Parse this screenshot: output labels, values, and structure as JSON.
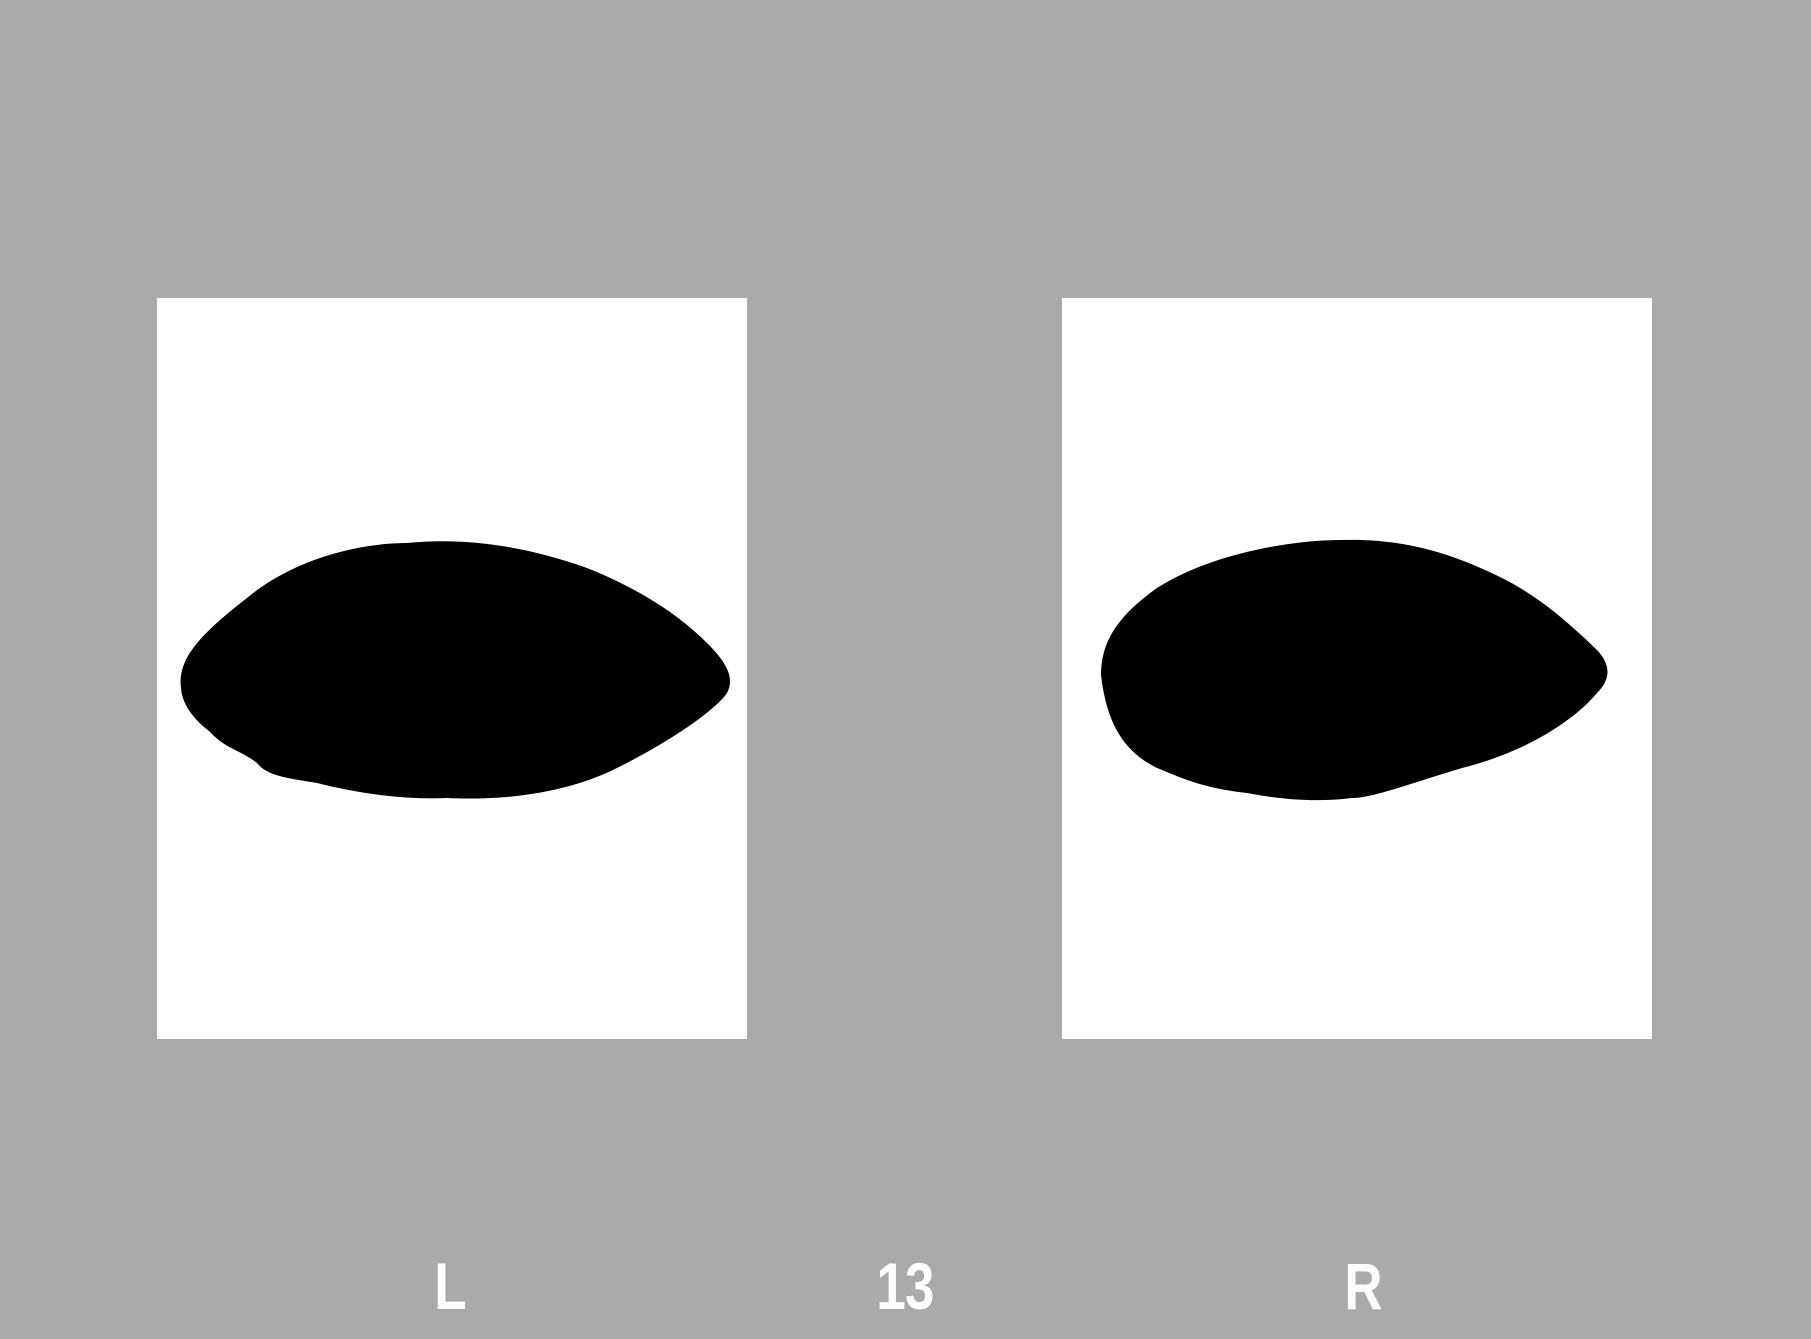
{
  "labels": {
    "left": "L",
    "page_number": "13",
    "right": "R"
  },
  "colors": {
    "background": "#aaaaaa",
    "panel": "#ffffff",
    "shape": "#000000",
    "label_text": "#ffffff"
  },
  "panels": [
    {
      "side": "left",
      "content": "black-ellipse-blot"
    },
    {
      "side": "right",
      "content": "black-ellipse-blot"
    }
  ]
}
